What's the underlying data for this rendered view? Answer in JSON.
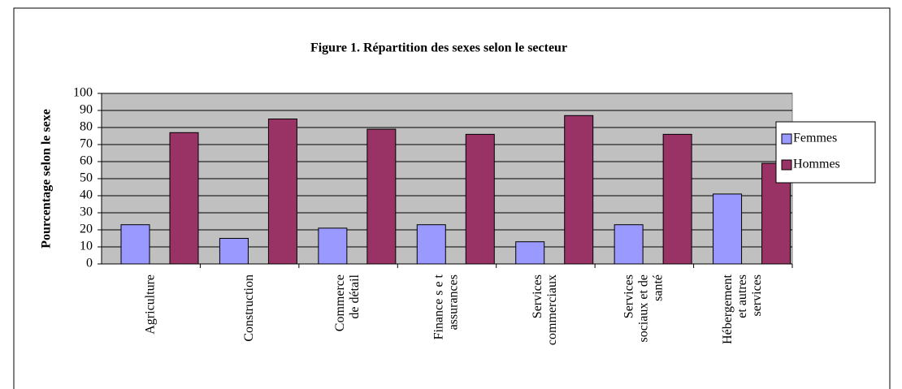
{
  "chart_data": {
    "type": "bar",
    "title": "Figure 1. Répartition des sexes selon le secteur",
    "ylabel": "Pourcentage selon le sexe",
    "categories": [
      [
        "Agriculture"
      ],
      [
        "Construction"
      ],
      [
        "Commerce",
        "de détail"
      ],
      [
        "Finance s e t",
        "assurances"
      ],
      [
        "Services",
        "commerciaux"
      ],
      [
        "Services",
        "sociaux et de",
        "santé"
      ],
      [
        "Hébergement",
        "et autres",
        "services"
      ]
    ],
    "series": [
      {
        "name": "Femmes",
        "color": "#9999ff",
        "values": [
          23,
          15,
          21,
          23,
          13,
          23,
          41
        ]
      },
      {
        "name": "Hommes",
        "color": "#993366",
        "values": [
          77,
          85,
          79,
          76,
          87,
          76,
          59
        ]
      }
    ],
    "ylim": [
      0,
      100
    ],
    "yticks": [
      0,
      10,
      20,
      30,
      40,
      50,
      60,
      70,
      80,
      90,
      100
    ],
    "grid": true,
    "legend": "right"
  }
}
